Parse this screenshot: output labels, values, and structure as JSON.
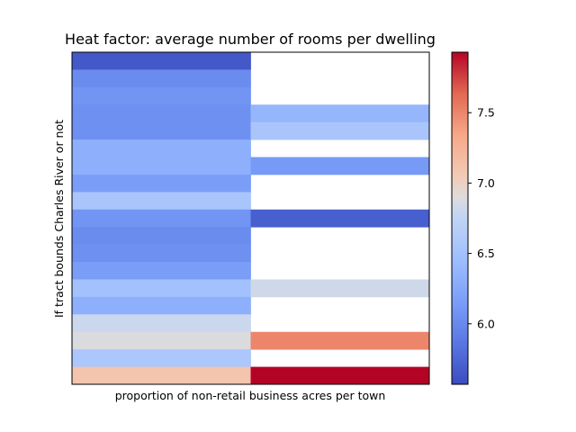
{
  "chart_data": {
    "type": "heatmap",
    "title": "Heat factor: average number of rooms per dwelling",
    "xlabel": "proportion of non-retail business acres per town",
    "ylabel": "If tract bounds Charles River or not",
    "colormap": "coolwarm",
    "colorbar": {
      "min": 5.57,
      "max": 7.93,
      "ticks": [
        6.0,
        6.5,
        7.0,
        7.5
      ],
      "tick_labels": [
        "6.0",
        "6.5",
        "7.0",
        "7.5"
      ]
    },
    "columns": 2,
    "rows": 19,
    "cells": [
      [
        5.65,
        null
      ],
      [
        6.02,
        null
      ],
      [
        6.08,
        null
      ],
      [
        6.05,
        6.38
      ],
      [
        6.05,
        6.55
      ],
      [
        6.32,
        null
      ],
      [
        6.32,
        6.12
      ],
      [
        6.15,
        null
      ],
      [
        6.55,
        null
      ],
      [
        6.08,
        5.7
      ],
      [
        6.02,
        null
      ],
      [
        6.05,
        null
      ],
      [
        6.15,
        null
      ],
      [
        6.5,
        6.82
      ],
      [
        6.32,
        null
      ],
      [
        6.8,
        null
      ],
      [
        6.88,
        7.5
      ],
      [
        6.58,
        null
      ],
      [
        7.1,
        7.93
      ]
    ],
    "grid": false,
    "colorbar_position": "right"
  }
}
